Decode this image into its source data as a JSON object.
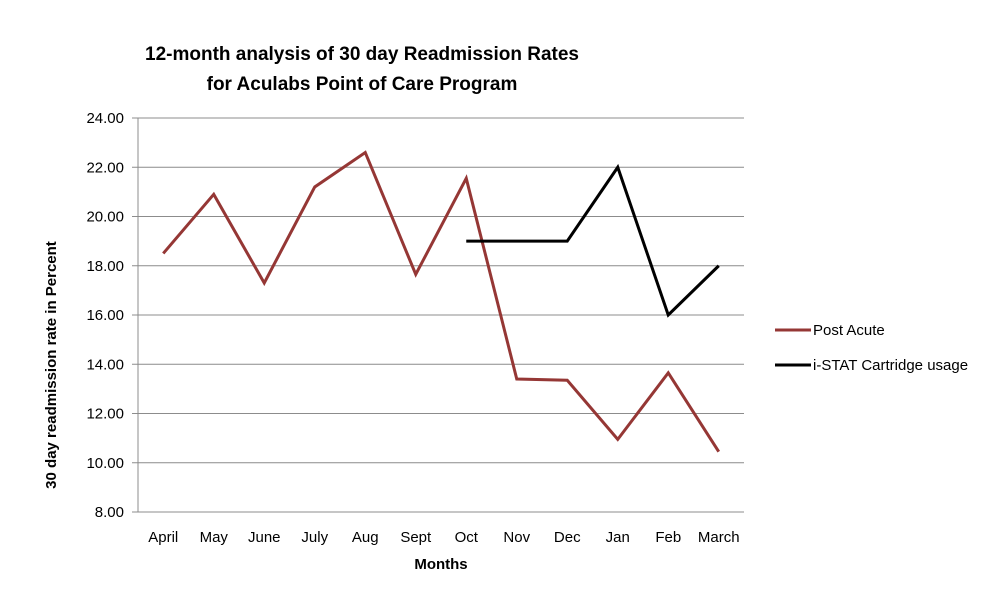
{
  "chart_data": {
    "type": "line",
    "title_lines": [
      "12-month analysis of 30 day Readmission Rates",
      "for Aculabs Point of Care Program"
    ],
    "xlabel": "Months",
    "ylabel": "30 day readmission rate in Percent",
    "categories": [
      "April",
      "May",
      "June",
      "July",
      "Aug",
      "Sept",
      "Oct",
      "Nov",
      "Dec",
      "Jan",
      "Feb",
      "March"
    ],
    "ylim": [
      8,
      24
    ],
    "yticks": [
      "8.00",
      "10.00",
      "12.00",
      "14.00",
      "16.00",
      "18.00",
      "20.00",
      "22.00",
      "24.00"
    ],
    "grid": true,
    "legend_position": "right",
    "series": [
      {
        "name": "Post Acute",
        "color": "#953735",
        "values": [
          18.5,
          20.9,
          17.3,
          21.2,
          22.6,
          17.65,
          21.55,
          13.4,
          13.35,
          10.95,
          13.65,
          10.45
        ]
      },
      {
        "name": "i-STAT Cartridge  usage",
        "color": "#000000",
        "values": [
          null,
          null,
          null,
          null,
          null,
          null,
          19.0,
          19.0,
          19.0,
          22.0,
          16.0,
          18.0
        ]
      }
    ]
  }
}
